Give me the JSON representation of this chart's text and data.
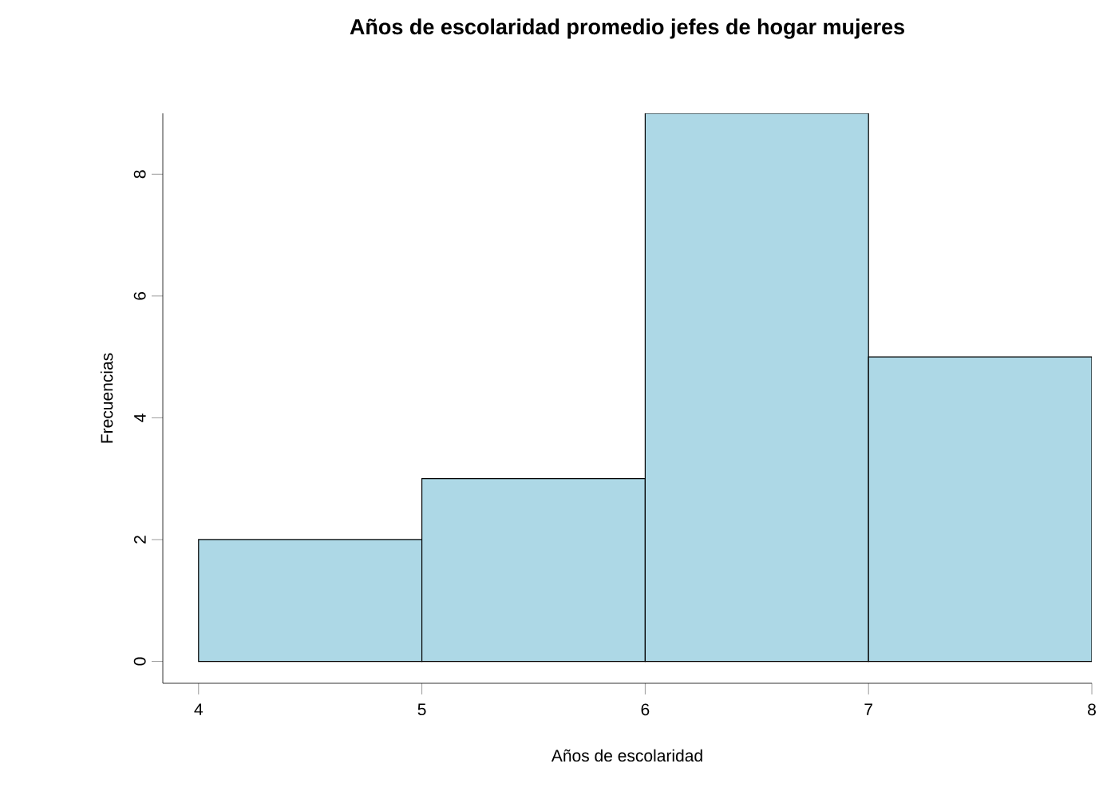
{
  "chart_data": {
    "type": "histogram",
    "title": "Años de escolaridad promedio jefes de hogar mujeres",
    "xlabel": "Años de escolaridad",
    "ylabel": "Frecuencias",
    "bins": [
      4,
      5,
      6,
      7,
      8
    ],
    "values": [
      2,
      3,
      9,
      5
    ],
    "color": "#add8e6",
    "xlim": [
      3.84,
      8
    ],
    "ylim": [
      -0.36,
      9
    ],
    "xticks": [
      4,
      5,
      6,
      7,
      8
    ],
    "yticks": [
      0,
      2,
      4,
      6,
      8
    ],
    "grid": false
  }
}
